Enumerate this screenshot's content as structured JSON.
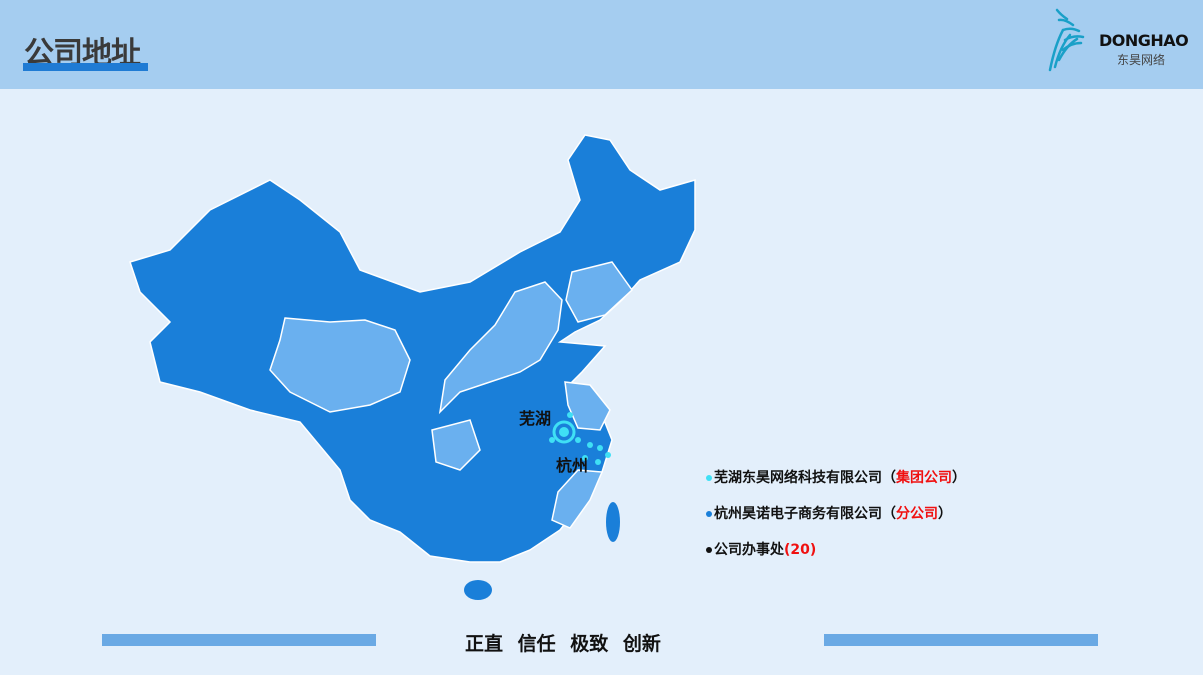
{
  "header": {
    "title": "公司地址",
    "logo_en": "DONGHAO",
    "logo_cn": "东昊网络"
  },
  "map": {
    "cities": [
      "芜湖",
      "杭州"
    ],
    "colors": {
      "dark": "#1a7fd9",
      "light": "#6ab0ef",
      "marker": "#3fe0f5"
    }
  },
  "legend": [
    {
      "name": "芜湖东昊网络科技有限公司",
      "open": "（",
      "tag": "集团公司",
      "close": "）",
      "dot_color": "#3fe0f5"
    },
    {
      "name": "杭州昊诺电子商务有限公司",
      "open": "（",
      "tag": "分公司",
      "close": "）",
      "dot_color": "#1a7fd9"
    },
    {
      "name": "公司办事处",
      "open": "(",
      "tag": "20",
      "close": ")",
      "dot_color": "#111111"
    }
  ],
  "footer": {
    "motto": "正直 信任 极致 创新"
  }
}
